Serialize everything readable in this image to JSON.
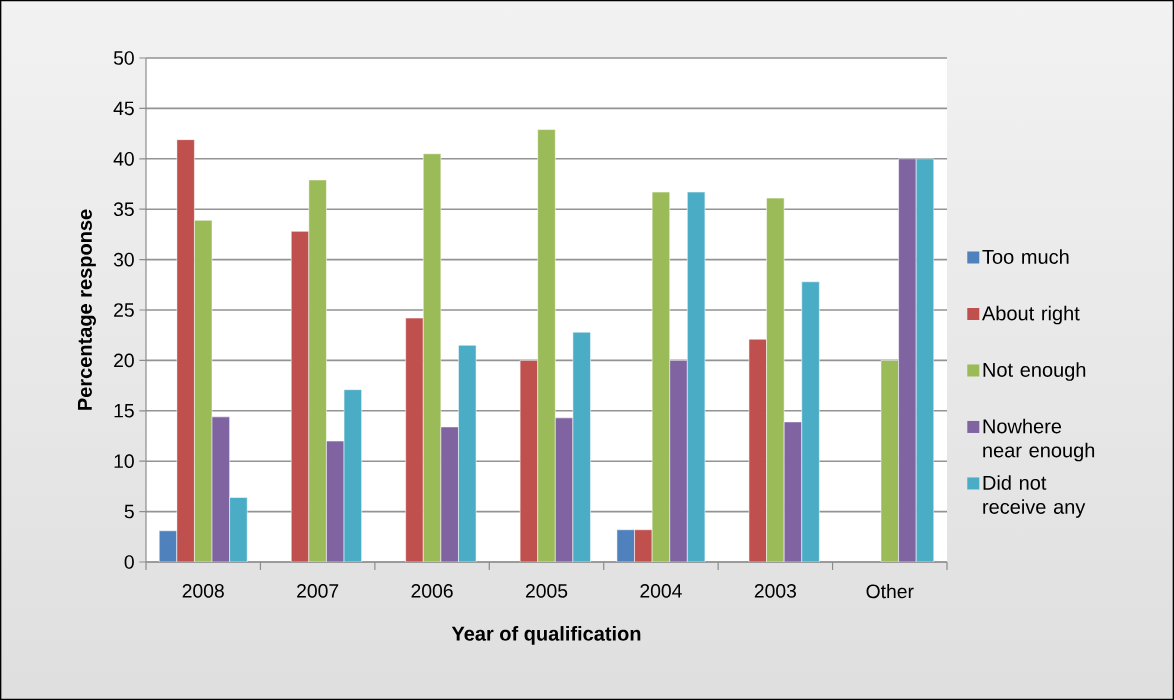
{
  "chart_data": {
    "type": "bar",
    "xlabel": "Year of qualification",
    "ylabel": "Percentage response",
    "categories": [
      "2008",
      "2007",
      "2006",
      "2005",
      "2004",
      "2003",
      "Other"
    ],
    "series": [
      {
        "name": "Too much",
        "color": "#4f81bd",
        "values": [
          3.1,
          null,
          null,
          null,
          3.2,
          null,
          null
        ]
      },
      {
        "name": "About right",
        "color": "#c0504d",
        "values": [
          41.9,
          32.8,
          24.2,
          20.0,
          3.2,
          22.1,
          null
        ]
      },
      {
        "name": "Not enough",
        "color": "#9bbb59",
        "values": [
          33.9,
          37.9,
          40.5,
          42.9,
          36.7,
          36.1,
          20.0
        ]
      },
      {
        "name": "Nowhere near enough",
        "color": "#8064a2",
        "values": [
          14.4,
          12.0,
          13.4,
          14.3,
          20.0,
          13.9,
          40.0
        ]
      },
      {
        "name": "Did not receive any",
        "color": "#4bacc6",
        "values": [
          6.4,
          17.1,
          21.5,
          22.8,
          36.7,
          27.8,
          40.0
        ]
      }
    ],
    "ylim": [
      0,
      50
    ],
    "yticks": [
      0,
      5,
      10,
      15,
      20,
      25,
      30,
      35,
      40,
      45,
      50
    ],
    "grid": "y",
    "legend": "right"
  }
}
